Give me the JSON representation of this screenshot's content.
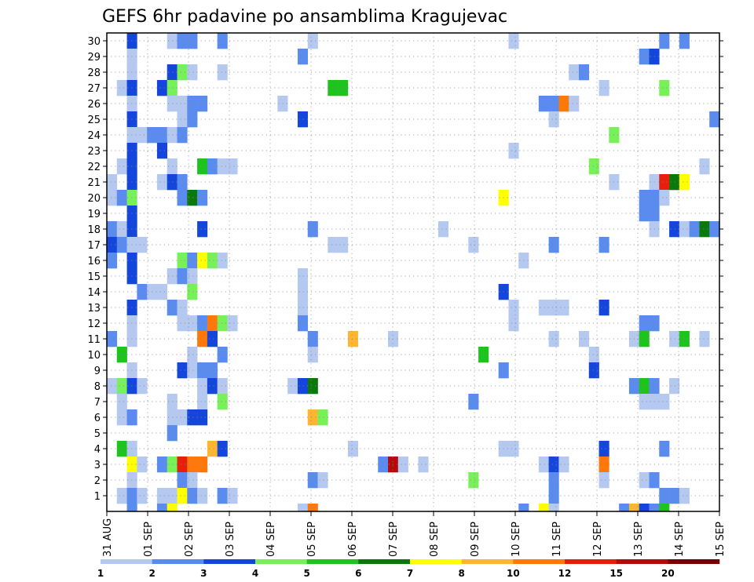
{
  "chart_data": {
    "type": "heatmap",
    "title": "GEFS 6hr padavine po ansamblima Kragujevac",
    "xlabel": "",
    "ylabel": "",
    "members": [
      "1",
      "2",
      "3",
      "4",
      "5",
      "6",
      "7",
      "8",
      "9",
      "10",
      "11",
      "12",
      "13",
      "14",
      "15",
      "16",
      "17",
      "18",
      "19",
      "20",
      "21",
      "22",
      "23",
      "24",
      "25",
      "26",
      "27",
      "28",
      "29",
      "30"
    ],
    "x_ticks": [
      "31 AUG",
      "01 SEP",
      "02 SEP",
      "03 SEP",
      "04 SEP",
      "05 SEP",
      "06 SEP",
      "07 SEP",
      "08 SEP",
      "09 SEP",
      "10 SEP",
      "11 SEP",
      "12 SEP",
      "13 SEP",
      "14 SEP",
      "15 SEP"
    ],
    "time_step_hours": 6,
    "steps": 61,
    "grid": true,
    "legend": {
      "position": "bottom",
      "labels": [
        "1",
        "2",
        "3",
        "4",
        "5",
        "6",
        "7",
        "8",
        "10",
        "12",
        "15",
        "20"
      ],
      "colors": [
        "#b4c8f0",
        "#5a8cf0",
        "#1446dc",
        "#78f05a",
        "#1ec31e",
        "#0a780a",
        "#ffff00",
        "#ffb432",
        "#ff780a",
        "#e61e0a",
        "#b40a0a",
        "#780000"
      ]
    },
    "colors": {
      "c1": "#b4c8f0",
      "c2": "#5a8cf0",
      "c3": "#1446dc",
      "c4": "#78f05a",
      "c5": "#1ec31e",
      "c6": "#0a780a",
      "c7": "#ffff00",
      "c8": "#ffb432",
      "c10": "#ff780a",
      "c12": "#e61e0a",
      "c15": "#b40a0a",
      "c20": "#780000"
    },
    "cells": [
      {
        "m": 30,
        "t": 2,
        "v": 3
      },
      {
        "m": 30,
        "t": 6,
        "v": 1
      },
      {
        "m": 30,
        "t": 7,
        "v": 2
      },
      {
        "m": 30,
        "t": 8,
        "v": 2
      },
      {
        "m": 30,
        "t": 11,
        "v": 2
      },
      {
        "m": 30,
        "t": 20,
        "v": 1
      },
      {
        "m": 30,
        "t": 40,
        "v": 1
      },
      {
        "m": 30,
        "t": 55,
        "v": 2
      },
      {
        "m": 30,
        "t": 57,
        "v": 2
      },
      {
        "m": 29,
        "t": 2,
        "v": 1
      },
      {
        "m": 29,
        "t": 19,
        "v": 2
      },
      {
        "m": 29,
        "t": 53,
        "v": 2
      },
      {
        "m": 29,
        "t": 54,
        "v": 3
      },
      {
        "m": 28,
        "t": 2,
        "v": 1
      },
      {
        "m": 28,
        "t": 6,
        "v": 3
      },
      {
        "m": 28,
        "t": 7,
        "v": 4
      },
      {
        "m": 28,
        "t": 8,
        "v": 1
      },
      {
        "m": 28,
        "t": 11,
        "v": 1
      },
      {
        "m": 28,
        "t": 46,
        "v": 1
      },
      {
        "m": 28,
        "t": 47,
        "v": 2
      },
      {
        "m": 27,
        "t": 1,
        "v": 1
      },
      {
        "m": 27,
        "t": 2,
        "v": 3
      },
      {
        "m": 27,
        "t": 5,
        "v": 3
      },
      {
        "m": 27,
        "t": 6,
        "v": 4
      },
      {
        "m": 27,
        "t": 22,
        "v": 5
      },
      {
        "m": 27,
        "t": 23,
        "v": 5
      },
      {
        "m": 27,
        "t": 49,
        "v": 1
      },
      {
        "m": 27,
        "t": 55,
        "v": 4
      },
      {
        "m": 26,
        "t": 2,
        "v": 1
      },
      {
        "m": 26,
        "t": 6,
        "v": 1
      },
      {
        "m": 26,
        "t": 7,
        "v": 1
      },
      {
        "m": 26,
        "t": 8,
        "v": 2
      },
      {
        "m": 26,
        "t": 9,
        "v": 2
      },
      {
        "m": 26,
        "t": 17,
        "v": 1
      },
      {
        "m": 26,
        "t": 43,
        "v": 2
      },
      {
        "m": 26,
        "t": 44,
        "v": 2
      },
      {
        "m": 26,
        "t": 45,
        "v": 10
      },
      {
        "m": 26,
        "t": 46,
        "v": 1
      },
      {
        "m": 25,
        "t": 2,
        "v": 3
      },
      {
        "m": 25,
        "t": 7,
        "v": 1
      },
      {
        "m": 25,
        "t": 8,
        "v": 2
      },
      {
        "m": 25,
        "t": 19,
        "v": 3
      },
      {
        "m": 25,
        "t": 44,
        "v": 1
      },
      {
        "m": 25,
        "t": 60,
        "v": 2
      },
      {
        "m": 24,
        "t": 2,
        "v": 1
      },
      {
        "m": 24,
        "t": 3,
        "v": 1
      },
      {
        "m": 24,
        "t": 4,
        "v": 2
      },
      {
        "m": 24,
        "t": 5,
        "v": 2
      },
      {
        "m": 24,
        "t": 6,
        "v": 1
      },
      {
        "m": 24,
        "t": 7,
        "v": 2
      },
      {
        "m": 24,
        "t": 50,
        "v": 4
      },
      {
        "m": 23,
        "t": 2,
        "v": 3
      },
      {
        "m": 23,
        "t": 5,
        "v": 3
      },
      {
        "m": 23,
        "t": 40,
        "v": 1
      },
      {
        "m": 22,
        "t": 1,
        "v": 1
      },
      {
        "m": 22,
        "t": 2,
        "v": 3
      },
      {
        "m": 22,
        "t": 6,
        "v": 1
      },
      {
        "m": 22,
        "t": 9,
        "v": 5
      },
      {
        "m": 22,
        "t": 10,
        "v": 2
      },
      {
        "m": 22,
        "t": 11,
        "v": 1
      },
      {
        "m": 22,
        "t": 12,
        "v": 1
      },
      {
        "m": 22,
        "t": 48,
        "v": 4
      },
      {
        "m": 22,
        "t": 59,
        "v": 1
      },
      {
        "m": 21,
        "t": 0,
        "v": 1
      },
      {
        "m": 21,
        "t": 2,
        "v": 3
      },
      {
        "m": 21,
        "t": 5,
        "v": 1
      },
      {
        "m": 21,
        "t": 6,
        "v": 3
      },
      {
        "m": 21,
        "t": 7,
        "v": 2
      },
      {
        "m": 21,
        "t": 50,
        "v": 1
      },
      {
        "m": 21,
        "t": 54,
        "v": 1
      },
      {
        "m": 21,
        "t": 55,
        "v": 12
      },
      {
        "m": 21,
        "t": 56,
        "v": 6
      },
      {
        "m": 21,
        "t": 57,
        "v": 7
      },
      {
        "m": 20,
        "t": 0,
        "v": 1
      },
      {
        "m": 20,
        "t": 1,
        "v": 2
      },
      {
        "m": 20,
        "t": 2,
        "v": 4
      },
      {
        "m": 20,
        "t": 7,
        "v": 2
      },
      {
        "m": 20,
        "t": 8,
        "v": 6
      },
      {
        "m": 20,
        "t": 9,
        "v": 2
      },
      {
        "m": 20,
        "t": 39,
        "v": 7
      },
      {
        "m": 20,
        "t": 53,
        "v": 2
      },
      {
        "m": 20,
        "t": 54,
        "v": 2
      },
      {
        "m": 20,
        "t": 55,
        "v": 1
      },
      {
        "m": 19,
        "t": 2,
        "v": 3
      },
      {
        "m": 19,
        "t": 53,
        "v": 2
      },
      {
        "m": 19,
        "t": 54,
        "v": 2
      },
      {
        "m": 18,
        "t": 0,
        "v": 2
      },
      {
        "m": 18,
        "t": 1,
        "v": 1
      },
      {
        "m": 18,
        "t": 2,
        "v": 3
      },
      {
        "m": 18,
        "t": 9,
        "v": 3
      },
      {
        "m": 18,
        "t": 20,
        "v": 2
      },
      {
        "m": 18,
        "t": 33,
        "v": 1
      },
      {
        "m": 18,
        "t": 54,
        "v": 1
      },
      {
        "m": 18,
        "t": 56,
        "v": 3
      },
      {
        "m": 18,
        "t": 57,
        "v": 1
      },
      {
        "m": 18,
        "t": 58,
        "v": 2
      },
      {
        "m": 18,
        "t": 59,
        "v": 6
      },
      {
        "m": 18,
        "t": 60,
        "v": 2
      },
      {
        "m": 17,
        "t": 0,
        "v": 3
      },
      {
        "m": 17,
        "t": 1,
        "v": 2
      },
      {
        "m": 17,
        "t": 2,
        "v": 1
      },
      {
        "m": 17,
        "t": 3,
        "v": 1
      },
      {
        "m": 17,
        "t": 22,
        "v": 1
      },
      {
        "m": 17,
        "t": 23,
        "v": 1
      },
      {
        "m": 17,
        "t": 36,
        "v": 1
      },
      {
        "m": 17,
        "t": 44,
        "v": 2
      },
      {
        "m": 17,
        "t": 49,
        "v": 2
      },
      {
        "m": 16,
        "t": 0,
        "v": 2
      },
      {
        "m": 16,
        "t": 2,
        "v": 3
      },
      {
        "m": 16,
        "t": 7,
        "v": 4
      },
      {
        "m": 16,
        "t": 8,
        "v": 2
      },
      {
        "m": 16,
        "t": 9,
        "v": 7
      },
      {
        "m": 16,
        "t": 10,
        "v": 4
      },
      {
        "m": 16,
        "t": 11,
        "v": 1
      },
      {
        "m": 16,
        "t": 41,
        "v": 1
      },
      {
        "m": 15,
        "t": 2,
        "v": 3
      },
      {
        "m": 15,
        "t": 6,
        "v": 1
      },
      {
        "m": 15,
        "t": 7,
        "v": 2
      },
      {
        "m": 15,
        "t": 8,
        "v": 1
      },
      {
        "m": 15,
        "t": 19,
        "v": 1
      },
      {
        "m": 14,
        "t": 3,
        "v": 2
      },
      {
        "m": 14,
        "t": 4,
        "v": 1
      },
      {
        "m": 14,
        "t": 5,
        "v": 1
      },
      {
        "m": 14,
        "t": 8,
        "v": 4
      },
      {
        "m": 14,
        "t": 19,
        "v": 1
      },
      {
        "m": 14,
        "t": 39,
        "v": 3
      },
      {
        "m": 13,
        "t": 2,
        "v": 3
      },
      {
        "m": 13,
        "t": 6,
        "v": 2
      },
      {
        "m": 13,
        "t": 7,
        "v": 1
      },
      {
        "m": 13,
        "t": 19,
        "v": 1
      },
      {
        "m": 13,
        "t": 40,
        "v": 1
      },
      {
        "m": 13,
        "t": 43,
        "v": 1
      },
      {
        "m": 13,
        "t": 44,
        "v": 1
      },
      {
        "m": 13,
        "t": 45,
        "v": 1
      },
      {
        "m": 13,
        "t": 49,
        "v": 3
      },
      {
        "m": 12,
        "t": 2,
        "v": 1
      },
      {
        "m": 12,
        "t": 7,
        "v": 1
      },
      {
        "m": 12,
        "t": 8,
        "v": 1
      },
      {
        "m": 12,
        "t": 9,
        "v": 2
      },
      {
        "m": 12,
        "t": 10,
        "v": 10
      },
      {
        "m": 12,
        "t": 11,
        "v": 4
      },
      {
        "m": 12,
        "t": 12,
        "v": 1
      },
      {
        "m": 12,
        "t": 19,
        "v": 2
      },
      {
        "m": 12,
        "t": 40,
        "v": 1
      },
      {
        "m": 12,
        "t": 53,
        "v": 2
      },
      {
        "m": 12,
        "t": 54,
        "v": 2
      },
      {
        "m": 11,
        "t": 0,
        "v": 2
      },
      {
        "m": 11,
        "t": 2,
        "v": 1
      },
      {
        "m": 11,
        "t": 9,
        "v": 10
      },
      {
        "m": 11,
        "t": 10,
        "v": 3
      },
      {
        "m": 11,
        "t": 20,
        "v": 2
      },
      {
        "m": 11,
        "t": 24,
        "v": 8
      },
      {
        "m": 11,
        "t": 28,
        "v": 1
      },
      {
        "m": 11,
        "t": 44,
        "v": 1
      },
      {
        "m": 11,
        "t": 47,
        "v": 1
      },
      {
        "m": 11,
        "t": 52,
        "v": 1
      },
      {
        "m": 11,
        "t": 53,
        "v": 5
      },
      {
        "m": 11,
        "t": 56,
        "v": 1
      },
      {
        "m": 11,
        "t": 57,
        "v": 5
      },
      {
        "m": 11,
        "t": 59,
        "v": 1
      },
      {
        "m": 10,
        "t": 1,
        "v": 5
      },
      {
        "m": 10,
        "t": 8,
        "v": 1
      },
      {
        "m": 10,
        "t": 11,
        "v": 2
      },
      {
        "m": 10,
        "t": 20,
        "v": 1
      },
      {
        "m": 10,
        "t": 37,
        "v": 5
      },
      {
        "m": 10,
        "t": 48,
        "v": 1
      },
      {
        "m": 9,
        "t": 2,
        "v": 1
      },
      {
        "m": 9,
        "t": 7,
        "v": 3
      },
      {
        "m": 9,
        "t": 8,
        "v": 1
      },
      {
        "m": 9,
        "t": 9,
        "v": 2
      },
      {
        "m": 9,
        "t": 10,
        "v": 2
      },
      {
        "m": 9,
        "t": 39,
        "v": 2
      },
      {
        "m": 9,
        "t": 48,
        "v": 3
      },
      {
        "m": 8,
        "t": 0,
        "v": 1
      },
      {
        "m": 8,
        "t": 1,
        "v": 4
      },
      {
        "m": 8,
        "t": 2,
        "v": 3
      },
      {
        "m": 8,
        "t": 3,
        "v": 1
      },
      {
        "m": 8,
        "t": 9,
        "v": 1
      },
      {
        "m": 8,
        "t": 10,
        "v": 3
      },
      {
        "m": 8,
        "t": 11,
        "v": 1
      },
      {
        "m": 8,
        "t": 18,
        "v": 1
      },
      {
        "m": 8,
        "t": 19,
        "v": 3
      },
      {
        "m": 8,
        "t": 20,
        "v": 6
      },
      {
        "m": 8,
        "t": 52,
        "v": 2
      },
      {
        "m": 8,
        "t": 53,
        "v": 5
      },
      {
        "m": 8,
        "t": 54,
        "v": 2
      },
      {
        "m": 8,
        "t": 56,
        "v": 1
      },
      {
        "m": 7,
        "t": 1,
        "v": 1
      },
      {
        "m": 7,
        "t": 6,
        "v": 1
      },
      {
        "m": 7,
        "t": 9,
        "v": 1
      },
      {
        "m": 7,
        "t": 11,
        "v": 4
      },
      {
        "m": 7,
        "t": 36,
        "v": 2
      },
      {
        "m": 7,
        "t": 53,
        "v": 1
      },
      {
        "m": 7,
        "t": 54,
        "v": 1
      },
      {
        "m": 7,
        "t": 55,
        "v": 1
      },
      {
        "m": 6,
        "t": 1,
        "v": 1
      },
      {
        "m": 6,
        "t": 2,
        "v": 2
      },
      {
        "m": 6,
        "t": 6,
        "v": 1
      },
      {
        "m": 6,
        "t": 7,
        "v": 1
      },
      {
        "m": 6,
        "t": 8,
        "v": 3
      },
      {
        "m": 6,
        "t": 9,
        "v": 3
      },
      {
        "m": 6,
        "t": 20,
        "v": 8
      },
      {
        "m": 6,
        "t": 21,
        "v": 4
      },
      {
        "m": 5,
        "t": 6,
        "v": 2
      },
      {
        "m": 4,
        "t": 1,
        "v": 5
      },
      {
        "m": 4,
        "t": 2,
        "v": 1
      },
      {
        "m": 4,
        "t": 10,
        "v": 8
      },
      {
        "m": 4,
        "t": 11,
        "v": 3
      },
      {
        "m": 4,
        "t": 24,
        "v": 1
      },
      {
        "m": 4,
        "t": 39,
        "v": 1
      },
      {
        "m": 4,
        "t": 40,
        "v": 1
      },
      {
        "m": 4,
        "t": 49,
        "v": 3
      },
      {
        "m": 4,
        "t": 55,
        "v": 2
      },
      {
        "m": 3,
        "t": 2,
        "v": 7
      },
      {
        "m": 3,
        "t": 3,
        "v": 1
      },
      {
        "m": 3,
        "t": 5,
        "v": 2
      },
      {
        "m": 3,
        "t": 6,
        "v": 4
      },
      {
        "m": 3,
        "t": 7,
        "v": 12
      },
      {
        "m": 3,
        "t": 8,
        "v": 10
      },
      {
        "m": 3,
        "t": 9,
        "v": 10
      },
      {
        "m": 3,
        "t": 27,
        "v": 2
      },
      {
        "m": 3,
        "t": 28,
        "v": 15
      },
      {
        "m": 3,
        "t": 29,
        "v": 1
      },
      {
        "m": 3,
        "t": 31,
        "v": 1
      },
      {
        "m": 3,
        "t": 43,
        "v": 1
      },
      {
        "m": 3,
        "t": 44,
        "v": 3
      },
      {
        "m": 3,
        "t": 45,
        "v": 1
      },
      {
        "m": 3,
        "t": 49,
        "v": 10
      },
      {
        "m": 2,
        "t": 2,
        "v": 1
      },
      {
        "m": 2,
        "t": 7,
        "v": 2
      },
      {
        "m": 2,
        "t": 8,
        "v": 1
      },
      {
        "m": 2,
        "t": 20,
        "v": 2
      },
      {
        "m": 2,
        "t": 21,
        "v": 1
      },
      {
        "m": 2,
        "t": 36,
        "v": 4
      },
      {
        "m": 2,
        "t": 44,
        "v": 2
      },
      {
        "m": 2,
        "t": 49,
        "v": 1
      },
      {
        "m": 2,
        "t": 53,
        "v": 1
      },
      {
        "m": 2,
        "t": 54,
        "v": 2
      },
      {
        "m": 1,
        "t": 1,
        "v": 1
      },
      {
        "m": 1,
        "t": 2,
        "v": 2
      },
      {
        "m": 1,
        "t": 3,
        "v": 1
      },
      {
        "m": 1,
        "t": 5,
        "v": 1
      },
      {
        "m": 1,
        "t": 6,
        "v": 1
      },
      {
        "m": 1,
        "t": 7,
        "v": 7
      },
      {
        "m": 1,
        "t": 8,
        "v": 2
      },
      {
        "m": 1,
        "t": 9,
        "v": 1
      },
      {
        "m": 1,
        "t": 11,
        "v": 2
      },
      {
        "m": 1,
        "t": 12,
        "v": 1
      },
      {
        "m": 1,
        "t": 44,
        "v": 2
      },
      {
        "m": 1,
        "t": 55,
        "v": 2
      },
      {
        "m": 1,
        "t": 56,
        "v": 2
      },
      {
        "m": 1,
        "t": 57,
        "v": 1
      },
      {
        "m": 0,
        "t": 2,
        "v": 2
      },
      {
        "m": 0,
        "t": 5,
        "v": 2
      },
      {
        "m": 0,
        "t": 6,
        "v": 7
      },
      {
        "m": 0,
        "t": 19,
        "v": 1
      },
      {
        "m": 0,
        "t": 20,
        "v": 10
      },
      {
        "m": 0,
        "t": 41,
        "v": 2
      },
      {
        "m": 0,
        "t": 43,
        "v": 7
      },
      {
        "m": 0,
        "t": 44,
        "v": 1
      },
      {
        "m": 0,
        "t": 51,
        "v": 2
      },
      {
        "m": 0,
        "t": 52,
        "v": 8
      },
      {
        "m": 0,
        "t": 53,
        "v": 3
      },
      {
        "m": 0,
        "t": 54,
        "v": 2
      },
      {
        "m": 0,
        "t": 55,
        "v": 5
      }
    ]
  }
}
